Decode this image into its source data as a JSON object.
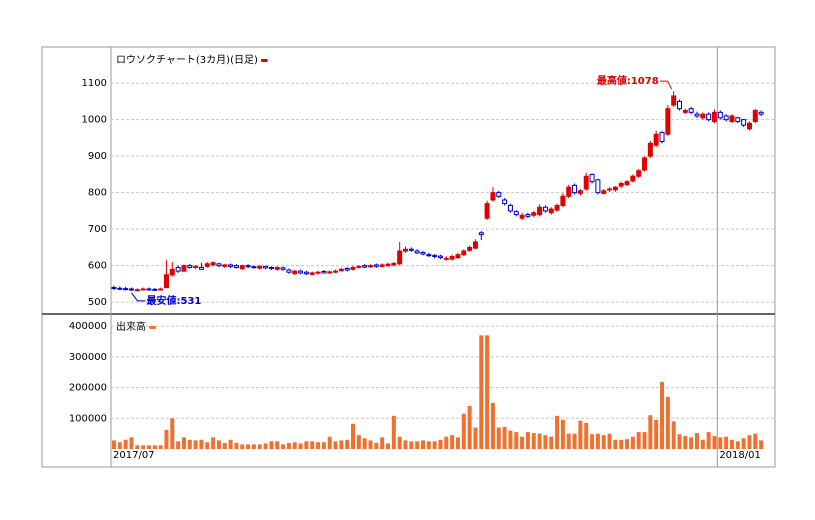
{
  "chart_data": [
    {
      "type": "candlestick",
      "title": "ロウソクチャート(3カ月)(日足)",
      "up_color": "#e00000",
      "down_color": "#0000cc",
      "ylim": [
        473,
        1199
      ],
      "yticks": [
        500,
        600,
        700,
        800,
        900,
        1000,
        1100
      ],
      "grid": true,
      "annotations": {
        "low": "最安値:531",
        "high": "最高値:1078"
      },
      "open": [
        540,
        538,
        537,
        536,
        533,
        534,
        536,
        535,
        534,
        540,
        575,
        595,
        585,
        600,
        595,
        595,
        598,
        602,
        605,
        598,
        602,
        600,
        592,
        600,
        597,
        593,
        598,
        595,
        590,
        594,
        588,
        578,
        585,
        582,
        576,
        580,
        584,
        580,
        582,
        586,
        592,
        590,
        596,
        600,
        597,
        602,
        598,
        600,
        602,
        605,
        640,
        645,
        640,
        636,
        630,
        628,
        626,
        618,
        618,
        622,
        630,
        642,
        648,
        690,
        730,
        780,
        800,
        780,
        765,
        748,
        730,
        740,
        738,
        740,
        760,
        745,
        752,
        765,
        790,
        820,
        798,
        810,
        850,
        835,
        798,
        808,
        808,
        818,
        822,
        832,
        845,
        862,
        900,
        930,
        965,
        960,
        1040,
        1050,
        1020,
        1030,
        1015,
        1005,
        1015,
        995,
        1020,
        1010,
        995,
        1005,
        1000,
        975,
        995,
        1020
      ],
      "high": [
        545,
        543,
        542,
        540,
        538,
        540,
        540,
        539,
        540,
        615,
        610,
        600,
        603,
        605,
        602,
        608,
        610,
        612,
        608,
        605,
        606,
        604,
        603,
        604,
        600,
        602,
        600,
        598,
        598,
        597,
        592,
        588,
        589,
        586,
        584,
        586,
        588,
        587,
        589,
        594,
        596,
        600,
        602,
        604,
        604,
        606,
        606,
        608,
        610,
        665,
        652,
        650,
        645,
        640,
        635,
        632,
        630,
        626,
        630,
        635,
        645,
        655,
        672,
        695,
        778,
        815,
        805,
        785,
        770,
        752,
        745,
        745,
        750,
        768,
        765,
        760,
        770,
        798,
        822,
        825,
        810,
        855,
        852,
        838,
        810,
        815,
        818,
        830,
        835,
        850,
        865,
        900,
        942,
        970,
        968,
        1040,
        1078,
        1055,
        1030,
        1035,
        1022,
        1020,
        1020,
        1028,
        1025,
        1015,
        1015,
        1008,
        1002,
        995,
        1030,
        1025
      ],
      "low": [
        533,
        533,
        532,
        531,
        532,
        533,
        533,
        532,
        533,
        538,
        570,
        580,
        582,
        592,
        590,
        588,
        594,
        598,
        596,
        594,
        593,
        592,
        588,
        593,
        592,
        590,
        590,
        588,
        586,
        586,
        578,
        575,
        576,
        574,
        574,
        576,
        578,
        578,
        580,
        584,
        584,
        586,
        592,
        593,
        594,
        594,
        595,
        596,
        598,
        600,
        635,
        638,
        632,
        628,
        624,
        620,
        618,
        614,
        614,
        618,
        626,
        638,
        645,
        670,
        725,
        775,
        785,
        765,
        745,
        735,
        725,
        730,
        732,
        735,
        745,
        740,
        748,
        760,
        785,
        795,
        792,
        805,
        825,
        795,
        795,
        802,
        802,
        812,
        818,
        828,
        840,
        858,
        895,
        925,
        935,
        955,
        1035,
        1025,
        1015,
        1015,
        1005,
        1000,
        995,
        990,
        1000,
        995,
        990,
        990,
        980,
        970,
        990,
        1010
      ],
      "close": [
        538,
        537,
        536,
        535,
        534,
        536,
        535,
        534,
        536,
        575,
        590,
        585,
        600,
        595,
        598,
        590,
        605,
        608,
        600,
        602,
        598,
        595,
        600,
        597,
        595,
        598,
        594,
        592,
        595,
        590,
        582,
        585,
        580,
        578,
        580,
        582,
        580,
        583,
        585,
        590,
        588,
        595,
        598,
        596,
        600,
        598,
        602,
        604,
        606,
        640,
        645,
        642,
        635,
        632,
        628,
        625,
        622,
        620,
        625,
        630,
        640,
        650,
        665,
        685,
        770,
        800,
        790,
        770,
        750,
        740,
        738,
        735,
        745,
        760,
        750,
        755,
        765,
        790,
        815,
        800,
        805,
        845,
        830,
        800,
        805,
        810,
        815,
        825,
        830,
        845,
        860,
        895,
        935,
        960,
        940,
        1030,
        1065,
        1030,
        1025,
        1020,
        1010,
        1015,
        1000,
        1020,
        1005,
        1000,
        1010,
        995,
        985,
        990,
        1025,
        1015
      ]
    },
    {
      "type": "bar",
      "title": "出来高",
      "color": "#f07030",
      "ylim": [
        0,
        433000
      ],
      "yticks": [
        100000,
        200000,
        300000,
        400000
      ],
      "grid": true,
      "categories": [
        "2017/07",
        null,
        null,
        null,
        null,
        null,
        null,
        null,
        null,
        null,
        null,
        null,
        null,
        null,
        null,
        null,
        null,
        null,
        null,
        null,
        null,
        null,
        null,
        null,
        null,
        null,
        null,
        null,
        null,
        null,
        null,
        null,
        null,
        null,
        null,
        null,
        null,
        null,
        null,
        null,
        null,
        null,
        null,
        null,
        null,
        null,
        null,
        null,
        null,
        null,
        null,
        null,
        null,
        null,
        null,
        null,
        null,
        null,
        null,
        null,
        null,
        null,
        null,
        null,
        null,
        null,
        null,
        null,
        null,
        null,
        null,
        null,
        null,
        null,
        null,
        null,
        null,
        null,
        null,
        null,
        null,
        null,
        null,
        null,
        null,
        null,
        null,
        null,
        null,
        null,
        null,
        null,
        null,
        null,
        null,
        null,
        null,
        null,
        null,
        null,
        null,
        null,
        null,
        null,
        "2018/01",
        null,
        null,
        null,
        null,
        null,
        null,
        null
      ],
      "values": [
        28000,
        22000,
        30000,
        38000,
        12000,
        12000,
        12000,
        12000,
        12000,
        62000,
        100000,
        25000,
        38000,
        30000,
        28000,
        30000,
        22000,
        38000,
        28000,
        20000,
        30000,
        20000,
        15000,
        15000,
        15000,
        15000,
        18000,
        25000,
        25000,
        15000,
        20000,
        22000,
        18000,
        25000,
        25000,
        22000,
        22000,
        40000,
        25000,
        28000,
        30000,
        82000,
        45000,
        35000,
        28000,
        20000,
        38000,
        18000,
        108000,
        40000,
        28000,
        25000,
        25000,
        28000,
        25000,
        25000,
        30000,
        40000,
        45000,
        38000,
        115000,
        140000,
        70000,
        370000,
        370000,
        150000,
        70000,
        72000,
        60000,
        55000,
        40000,
        55000,
        52000,
        50000,
        45000,
        40000,
        108000,
        95000,
        50000,
        50000,
        92000,
        85000,
        48000,
        50000,
        45000,
        50000,
        30000,
        30000,
        32000,
        40000,
        55000,
        55000,
        110000,
        95000,
        218000,
        170000,
        90000,
        48000,
        42000,
        38000,
        52000,
        30000,
        55000,
        42000,
        38000,
        40000,
        30000,
        25000,
        35000,
        45000,
        50000,
        28000
      ]
    }
  ]
}
